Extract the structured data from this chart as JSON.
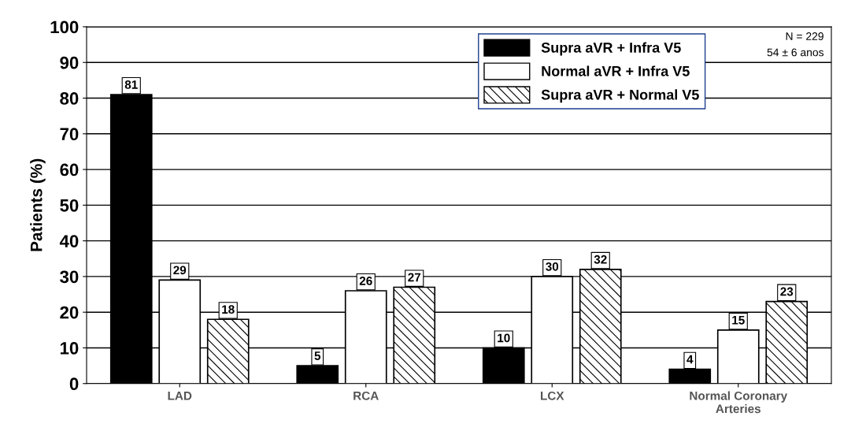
{
  "chart_data": {
    "type": "bar",
    "ylabel": "Patients (%)",
    "categories": [
      "LAD",
      "RCA",
      "LCX",
      "Normal Coronary\nArteries"
    ],
    "series": [
      {
        "name": "Supra aVR + Infra V5",
        "color": "#000000",
        "values": [
          81,
          5,
          10,
          4
        ]
      },
      {
        "name": "Normal aVR + Infra V5",
        "color": "#ffffff",
        "values": [
          29,
          26,
          30,
          15
        ]
      },
      {
        "name": "Supra aVR + Normal V5",
        "color": "#000000",
        "values": [
          18,
          27,
          32,
          23
        ]
      }
    ],
    "ylim": [
      0,
      100
    ],
    "yticks": [
      0,
      10,
      20,
      30,
      40,
      50,
      60,
      70,
      80,
      90,
      100
    ],
    "grid": "y",
    "legend": "top right",
    "data_labels": true,
    "annotations": [
      "N = 229",
      "54 ± 6 anos"
    ]
  }
}
